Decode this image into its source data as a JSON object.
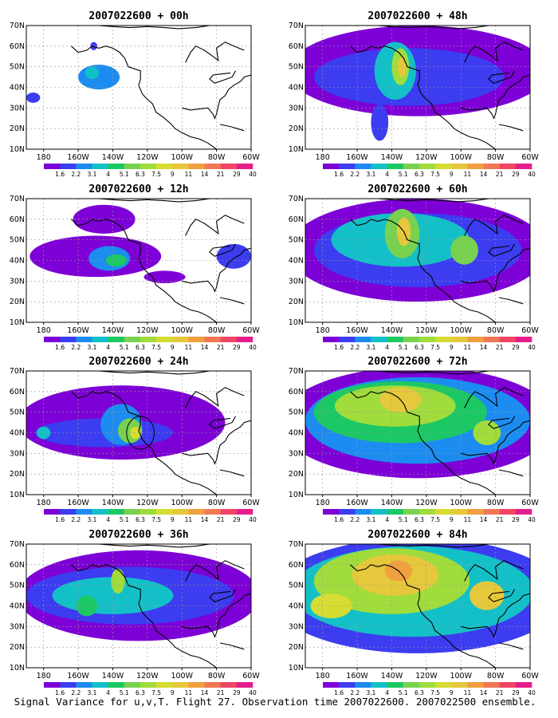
{
  "caption": "Signal Variance for u,v,T. Flight 27. Observation time 2007022600. 2007022500 ensemble.",
  "colors": {
    "bins": [
      "#7d00d6",
      "#3c3cf0",
      "#1c8cf0",
      "#14c0c8",
      "#1cc864",
      "#78d250",
      "#a0dc3c",
      "#d7dc32",
      "#e6c83c",
      "#f0a040",
      "#f07855",
      "#f04664",
      "#e61e8c"
    ],
    "coast": "#000000",
    "grid": "#9a9a9a"
  },
  "chart_data": [
    {
      "type": "heatmap",
      "title": "2007022600 + 00h",
      "x_ticks": [
        "180",
        "160W",
        "140W",
        "120W",
        "100W",
        "80W",
        "60W"
      ],
      "y_ticks": [
        "10N",
        "20N",
        "30N",
        "40N",
        "50N",
        "60N",
        "70N"
      ],
      "xlim": [
        170,
        300
      ],
      "ylim": [
        10,
        70
      ],
      "colorbar": [
        "1.6",
        "2.2",
        "3.1",
        "4",
        "5.1",
        "6.3",
        "7.5",
        "9",
        "11",
        "14",
        "21",
        "29",
        "40"
      ],
      "grid": true,
      "features": [
        {
          "lon": 212,
          "lat": 45,
          "rx": 12,
          "ry": 6,
          "level": 2
        },
        {
          "lon": 208,
          "lat": 47,
          "rx": 4,
          "ry": 3,
          "level": 3
        },
        {
          "lon": 174,
          "lat": 35,
          "rx": 4,
          "ry": 2.5,
          "level": 1
        },
        {
          "lon": 209,
          "lat": 60,
          "rx": 2,
          "ry": 2,
          "level": 1
        }
      ]
    },
    {
      "type": "heatmap",
      "title": "2007022600 + 12h",
      "x_ticks": [
        "180",
        "160W",
        "140W",
        "120W",
        "100W",
        "80W",
        "60W"
      ],
      "y_ticks": [
        "10N",
        "20N",
        "30N",
        "40N",
        "50N",
        "60N",
        "70N"
      ],
      "xlim": [
        170,
        300
      ],
      "ylim": [
        10,
        70
      ],
      "colorbar": [
        "1.6",
        "2.2",
        "3.1",
        "4",
        "5.1",
        "6.3",
        "7.5",
        "9",
        "11",
        "14",
        "21",
        "29",
        "40"
      ],
      "grid": true,
      "features": [
        {
          "lon": 210,
          "lat": 42,
          "rx": 38,
          "ry": 10,
          "level": 0
        },
        {
          "lon": 215,
          "lat": 60,
          "rx": 18,
          "ry": 7,
          "level": 0
        },
        {
          "lon": 218,
          "lat": 41,
          "rx": 12,
          "ry": 6,
          "level": 2
        },
        {
          "lon": 222,
          "lat": 40,
          "rx": 6,
          "ry": 3,
          "level": 4
        },
        {
          "lon": 290,
          "lat": 42,
          "rx": 10,
          "ry": 6,
          "level": 1
        },
        {
          "lon": 250,
          "lat": 32,
          "rx": 12,
          "ry": 3,
          "level": 0
        }
      ]
    },
    {
      "type": "heatmap",
      "title": "2007022600 + 24h",
      "x_ticks": [
        "180",
        "160W",
        "140W",
        "120W",
        "100W",
        "80W",
        "60W"
      ],
      "y_ticks": [
        "10N",
        "20N",
        "30N",
        "40N",
        "50N",
        "60N",
        "70N"
      ],
      "xlim": [
        170,
        300
      ],
      "ylim": [
        10,
        70
      ],
      "colorbar": [
        "1.6",
        "2.2",
        "3.1",
        "4",
        "5.1",
        "6.3",
        "7.5",
        "9",
        "11",
        "14",
        "21",
        "29",
        "40"
      ],
      "grid": true,
      "features": [
        {
          "lon": 225,
          "lat": 45,
          "rx": 60,
          "ry": 18,
          "level": 0
        },
        {
          "lon": 215,
          "lat": 40,
          "rx": 40,
          "ry": 7,
          "level": 1
        },
        {
          "lon": 225,
          "lat": 44,
          "rx": 12,
          "ry": 10,
          "level": 2
        },
        {
          "lon": 230,
          "lat": 41,
          "rx": 7,
          "ry": 6,
          "level": 5
        },
        {
          "lon": 233,
          "lat": 40,
          "rx": 3,
          "ry": 3,
          "level": 7
        },
        {
          "lon": 180,
          "lat": 40,
          "rx": 4,
          "ry": 3,
          "level": 3
        }
      ],
      "circle": {
        "lon": 236,
        "lat": 40,
        "r_deg": 8
      }
    },
    {
      "type": "heatmap",
      "title": "2007022600 + 36h",
      "x_ticks": [
        "180",
        "160W",
        "140W",
        "120W",
        "100W",
        "80W",
        "60W"
      ],
      "y_ticks": [
        "10N",
        "20N",
        "30N",
        "40N",
        "50N",
        "60N",
        "70N"
      ],
      "xlim": [
        170,
        300
      ],
      "ylim": [
        10,
        70
      ],
      "colorbar": [
        "1.6",
        "2.2",
        "3.1",
        "4",
        "5.1",
        "6.3",
        "7.5",
        "9",
        "11",
        "14",
        "21",
        "29",
        "40"
      ],
      "grid": true,
      "features": [
        {
          "lon": 235,
          "lat": 45,
          "rx": 70,
          "ry": 22,
          "level": 0
        },
        {
          "lon": 230,
          "lat": 45,
          "rx": 60,
          "ry": 14,
          "level": 1
        },
        {
          "lon": 220,
          "lat": 45,
          "rx": 35,
          "ry": 9,
          "level": 3
        },
        {
          "lon": 223,
          "lat": 52,
          "rx": 4,
          "ry": 6,
          "level": 6
        },
        {
          "lon": 205,
          "lat": 40,
          "rx": 6,
          "ry": 5,
          "level": 4
        }
      ]
    },
    {
      "type": "heatmap",
      "title": "2007022600 + 48h",
      "x_ticks": [
        "180",
        "160W",
        "140W",
        "120W",
        "100W",
        "80W",
        "60W"
      ],
      "y_ticks": [
        "10N",
        "20N",
        "30N",
        "40N",
        "50N",
        "60N",
        "70N"
      ],
      "xlim": [
        170,
        300
      ],
      "ylim": [
        10,
        70
      ],
      "colorbar": [
        "1.6",
        "2.2",
        "3.1",
        "4",
        "5.1",
        "6.3",
        "7.5",
        "9",
        "11",
        "14",
        "21",
        "29",
        "40"
      ],
      "grid": true,
      "features": [
        {
          "lon": 235,
          "lat": 48,
          "rx": 75,
          "ry": 22,
          "level": 0
        },
        {
          "lon": 230,
          "lat": 45,
          "rx": 55,
          "ry": 14,
          "level": 1
        },
        {
          "lon": 222,
          "lat": 48,
          "rx": 12,
          "ry": 14,
          "level": 3
        },
        {
          "lon": 225,
          "lat": 50,
          "rx": 5,
          "ry": 9,
          "level": 6
        },
        {
          "lon": 226,
          "lat": 50,
          "rx": 2.5,
          "ry": 5,
          "level": 8
        },
        {
          "lon": 213,
          "lat": 23,
          "rx": 5,
          "ry": 9,
          "level": 1
        }
      ]
    },
    {
      "type": "heatmap",
      "title": "2007022600 + 60h",
      "x_ticks": [
        "180",
        "160W",
        "140W",
        "120W",
        "100W",
        "80W",
        "60W"
      ],
      "y_ticks": [
        "10N",
        "20N",
        "30N",
        "40N",
        "50N",
        "60N",
        "70N"
      ],
      "xlim": [
        170,
        300
      ],
      "ylim": [
        10,
        70
      ],
      "colorbar": [
        "1.6",
        "2.2",
        "3.1",
        "4",
        "5.1",
        "6.3",
        "7.5",
        "9",
        "11",
        "14",
        "21",
        "29",
        "40"
      ],
      "grid": true,
      "features": [
        {
          "lon": 235,
          "lat": 45,
          "rx": 75,
          "ry": 25,
          "level": 0
        },
        {
          "lon": 235,
          "lat": 45,
          "rx": 60,
          "ry": 18,
          "level": 1
        },
        {
          "lon": 225,
          "lat": 50,
          "rx": 40,
          "ry": 13,
          "level": 3
        },
        {
          "lon": 226,
          "lat": 53,
          "rx": 10,
          "ry": 12,
          "level": 5
        },
        {
          "lon": 227,
          "lat": 54,
          "rx": 4,
          "ry": 7,
          "level": 8
        },
        {
          "lon": 262,
          "lat": 45,
          "rx": 8,
          "ry": 7,
          "level": 5
        }
      ]
    },
    {
      "type": "heatmap",
      "title": "2007022600 + 72h",
      "x_ticks": [
        "180",
        "160W",
        "140W",
        "120W",
        "100W",
        "80W",
        "60W"
      ],
      "y_ticks": [
        "10N",
        "20N",
        "30N",
        "40N",
        "50N",
        "60N",
        "70N"
      ],
      "xlim": [
        170,
        300
      ],
      "ylim": [
        10,
        70
      ],
      "colorbar": [
        "1.6",
        "2.2",
        "3.1",
        "4",
        "5.1",
        "6.3",
        "7.5",
        "9",
        "11",
        "14",
        "21",
        "29",
        "40"
      ],
      "grid": true,
      "features": [
        {
          "lon": 235,
          "lat": 45,
          "rx": 80,
          "ry": 27,
          "level": 0
        },
        {
          "lon": 235,
          "lat": 46,
          "rx": 65,
          "ry": 21,
          "level": 2
        },
        {
          "lon": 225,
          "lat": 50,
          "rx": 50,
          "ry": 15,
          "level": 4
        },
        {
          "lon": 222,
          "lat": 53,
          "rx": 35,
          "ry": 10,
          "level": 6
        },
        {
          "lon": 225,
          "lat": 56,
          "rx": 12,
          "ry": 6,
          "level": 8
        },
        {
          "lon": 275,
          "lat": 40,
          "rx": 8,
          "ry": 6,
          "level": 6
        }
      ]
    },
    {
      "type": "heatmap",
      "title": "2007022600 + 84h",
      "x_ticks": [
        "180",
        "160W",
        "140W",
        "120W",
        "100W",
        "80W",
        "60W"
      ],
      "y_ticks": [
        "10N",
        "20N",
        "30N",
        "40N",
        "50N",
        "60N",
        "70N"
      ],
      "xlim": [
        170,
        300
      ],
      "ylim": [
        10,
        70
      ],
      "colorbar": [
        "1.6",
        "2.2",
        "3.1",
        "4",
        "5.1",
        "6.3",
        "7.5",
        "9",
        "11",
        "14",
        "21",
        "29",
        "40"
      ],
      "grid": true,
      "features": [
        {
          "lon": 235,
          "lat": 45,
          "rx": 85,
          "ry": 28,
          "level": 1
        },
        {
          "lon": 232,
          "lat": 47,
          "rx": 70,
          "ry": 22,
          "level": 3
        },
        {
          "lon": 220,
          "lat": 52,
          "rx": 45,
          "ry": 16,
          "level": 6
        },
        {
          "lon": 222,
          "lat": 55,
          "rx": 25,
          "ry": 10,
          "level": 8
        },
        {
          "lon": 224,
          "lat": 57,
          "rx": 8,
          "ry": 5,
          "level": 9
        },
        {
          "lon": 275,
          "lat": 45,
          "rx": 10,
          "ry": 7,
          "level": 8
        },
        {
          "lon": 185,
          "lat": 40,
          "rx": 12,
          "ry": 6,
          "level": 7
        }
      ]
    }
  ]
}
